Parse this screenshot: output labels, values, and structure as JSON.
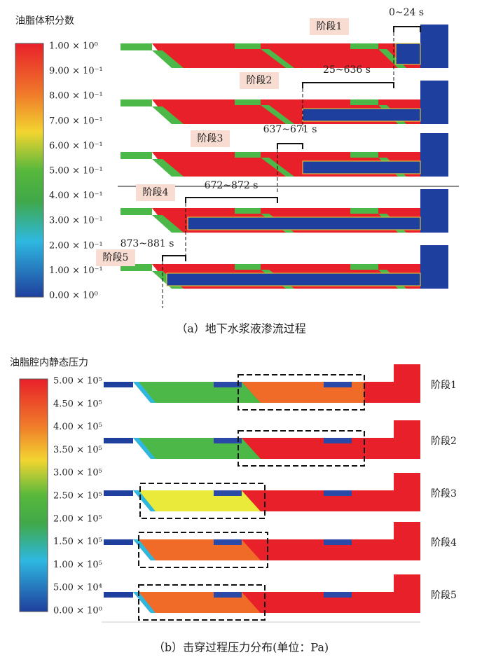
{
  "figure_a": {
    "legend_title": "油脂体积分数",
    "legend_labels": [
      "1.00 × 10⁰",
      "9.00 × 10⁻¹",
      "8.00 × 10⁻¹",
      "7.00 × 10⁻¹",
      "6.00 × 10⁻¹",
      "5.00 × 10⁻¹",
      "4.00 × 10⁻¹",
      "3.00 × 10⁻¹",
      "2.00 × 10⁻¹",
      "1.00 × 10⁻¹",
      "0.00 × 10⁰"
    ],
    "stages": [
      {
        "label": "阶段1",
        "time": "0~24 s"
      },
      {
        "label": "阶段2",
        "time": "25~636 s"
      },
      {
        "label": "阶段3",
        "time": "637~671 s"
      },
      {
        "label": "阶段4",
        "time": "672~872 s"
      },
      {
        "label": "阶段5",
        "time": "873~881 s"
      }
    ],
    "caption": "（a）地下水浆液渗流过程"
  },
  "figure_b": {
    "legend_title": "油脂腔内静态压力",
    "legend_labels": [
      "5.00 × 10⁵",
      "4.50 × 10⁵",
      "4.00 × 10⁵",
      "3.50 × 10⁵",
      "3.00 × 10⁵",
      "2.50 × 10⁵",
      "2.00 × 10⁵",
      "1.50 × 10⁵",
      "1.00 × 10⁵",
      "5.00 × 10⁴",
      "0.00 × 10⁰"
    ],
    "stages": [
      "阶段1",
      "阶段2",
      "阶段3",
      "阶段4",
      "阶段5"
    ],
    "caption": "（b）击穿过程压力分布(单位：Pa)"
  }
}
